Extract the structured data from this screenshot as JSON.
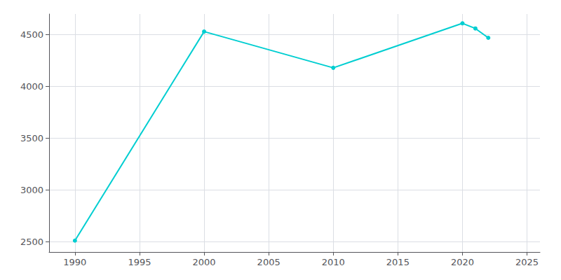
{
  "chart_data": {
    "type": "line",
    "x": [
      1990,
      2000,
      2010,
      2020,
      2021,
      2022
    ],
    "values": [
      2510,
      4530,
      4180,
      4610,
      4560,
      4470
    ],
    "color": "#00CED1",
    "marker": "circle",
    "xlim": [
      1988,
      2026
    ],
    "ylim": [
      2400,
      4700
    ],
    "xticks": [
      1990,
      1995,
      2000,
      2005,
      2010,
      2015,
      2020,
      2025
    ],
    "yticks": [
      2500,
      3000,
      3500,
      4000,
      4500
    ],
    "grid": true
  }
}
